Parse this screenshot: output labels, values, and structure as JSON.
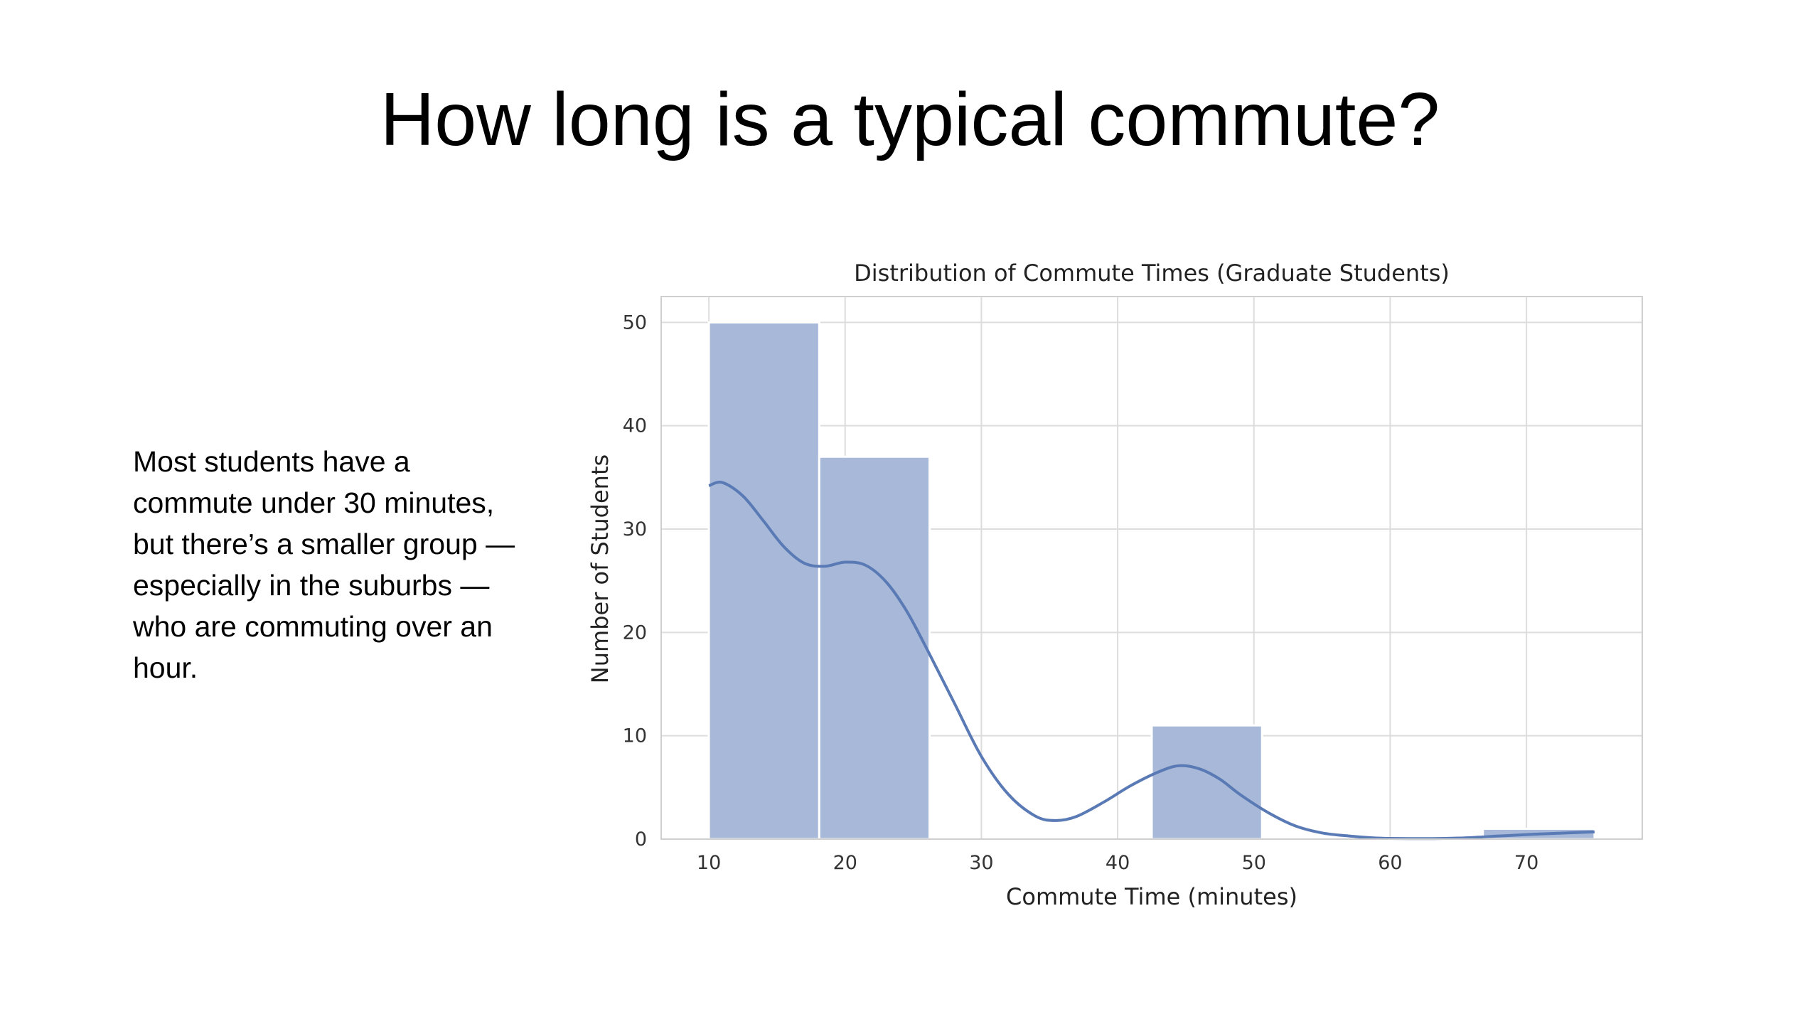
{
  "slide": {
    "title": "How long is a typical commute?",
    "body": "Most students have a commute under 30 minutes, but there’s a smaller group — especially in the suburbs — who are commuting over an hour."
  },
  "chart_data": {
    "type": "bar",
    "title": "Distribution of Commute Times (Graduate Students)",
    "xlabel": "Commute Time (minutes)",
    "ylabel": "Number of Students",
    "xlim": [
      6.5,
      78.5
    ],
    "ylim": [
      0,
      52.5
    ],
    "x_ticks": [
      10,
      20,
      30,
      40,
      50,
      60,
      70
    ],
    "y_ticks": [
      0,
      10,
      20,
      30,
      40,
      50
    ],
    "bins": [
      {
        "start": 10.0,
        "end": 18.1,
        "value": 50
      },
      {
        "start": 18.1,
        "end": 26.2,
        "value": 37
      },
      {
        "start": 26.2,
        "end": 34.3,
        "value": 0
      },
      {
        "start": 34.3,
        "end": 42.5,
        "value": 0
      },
      {
        "start": 42.5,
        "end": 50.6,
        "value": 11
      },
      {
        "start": 50.6,
        "end": 58.7,
        "value": 0
      },
      {
        "start": 58.7,
        "end": 66.8,
        "value": 0
      },
      {
        "start": 66.8,
        "end": 75.0,
        "value": 1
      }
    ],
    "kde": {
      "x": [
        10,
        11,
        12.5,
        14,
        15.5,
        17,
        18.5,
        20,
        21.5,
        23,
        24.5,
        26,
        28,
        30,
        32,
        34,
        35.5,
        37,
        39,
        41,
        43,
        44.5,
        46,
        47.5,
        49,
        51,
        53,
        55,
        57,
        59,
        62,
        65,
        68,
        71,
        73,
        75
      ],
      "y": [
        34.2,
        34.5,
        33.2,
        30.8,
        28.3,
        26.7,
        26.4,
        26.8,
        26.5,
        24.9,
        22.1,
        18.4,
        13.2,
        8.0,
        4.3,
        2.2,
        1.8,
        2.2,
        3.6,
        5.2,
        6.5,
        7.1,
        6.8,
        5.8,
        4.3,
        2.6,
        1.3,
        0.6,
        0.3,
        0.1,
        0.05,
        0.1,
        0.3,
        0.5,
        0.6,
        0.7
      ]
    },
    "grid": true,
    "bar_color": "#a7b8d8",
    "line_color": "#5a7ab5"
  }
}
